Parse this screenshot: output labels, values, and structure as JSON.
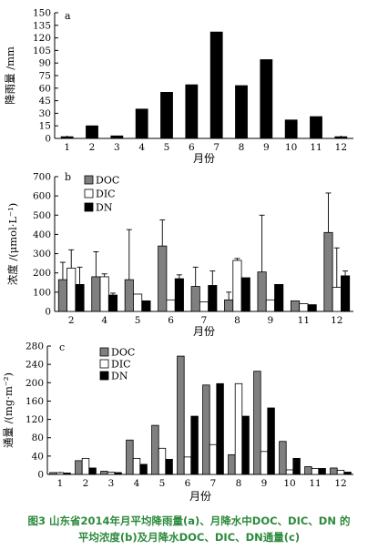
{
  "figure": {
    "caption_line1": "图3 山东省2014年月平均降雨量(a)、月降水中DOC、DIC、DN 的",
    "caption_line2": "平均浓度(b)及月降水DOC、DIC、DN通量(c)",
    "caption_color": "#2c8a3c"
  },
  "chart_data": [
    {
      "type": "bar",
      "panel_label": "a",
      "ylabel": "降雨量 /mm",
      "xlabel": "月份",
      "ylim": [
        0,
        150
      ],
      "yticks": [
        0,
        15,
        30,
        45,
        60,
        75,
        90,
        105,
        120,
        135,
        150
      ],
      "categories": [
        "1",
        "2",
        "3",
        "4",
        "5",
        "6",
        "7",
        "8",
        "9",
        "10",
        "11",
        "12"
      ],
      "series": [
        {
          "color": "#000000",
          "values": [
            2,
            15,
            3,
            35,
            55,
            64,
            127,
            63,
            94,
            22,
            26,
            2
          ]
        }
      ]
    },
    {
      "type": "bar",
      "panel_label": "b",
      "ylabel": "浓度 /(μmol·L⁻¹)",
      "xlabel": "月份",
      "ylim": [
        0,
        700
      ],
      "yticks": [
        0,
        100,
        200,
        300,
        400,
        500,
        600,
        700
      ],
      "categories": [
        "2",
        "4",
        "5",
        "6",
        "7",
        "8",
        "9",
        "11",
        "12"
      ],
      "series": [
        {
          "name": "DOC",
          "color": "#808080",
          "values": [
            165,
            180,
            165,
            340,
            130,
            60,
            205,
            55,
            410
          ],
          "errors": [
            90,
            130,
            260,
            135,
            100,
            40,
            295,
            0,
            205
          ]
        },
        {
          "name": "DIC",
          "color": "#ffffff",
          "values": [
            225,
            180,
            90,
            60,
            50,
            265,
            60,
            40,
            125
          ],
          "errors": [
            95,
            15,
            0,
            0,
            0,
            10,
            0,
            0,
            205
          ]
        },
        {
          "name": "DN",
          "color": "#000000",
          "values": [
            140,
            85,
            55,
            170,
            135,
            175,
            140,
            35,
            185
          ],
          "errors": [
            90,
            10,
            0,
            20,
            75,
            0,
            0,
            0,
            25
          ]
        }
      ]
    },
    {
      "type": "bar",
      "panel_label": "c",
      "ylabel": "通量 /(mg·m⁻²)",
      "xlabel": "月份",
      "ylim": [
        0,
        280
      ],
      "yticks": [
        0,
        40,
        80,
        120,
        160,
        200,
        240,
        280
      ],
      "categories": [
        "1",
        "2",
        "3",
        "4",
        "5",
        "6",
        "7",
        "8",
        "9",
        "10",
        "11",
        "12"
      ],
      "series": [
        {
          "name": "DOC",
          "color": "#808080",
          "values": [
            4,
            30,
            7,
            75,
            107,
            258,
            195,
            43,
            225,
            72,
            17,
            14
          ]
        },
        {
          "name": "DIC",
          "color": "#ffffff",
          "values": [
            4,
            35,
            5,
            35,
            57,
            38,
            65,
            198,
            50,
            10,
            13,
            9
          ]
        },
        {
          "name": "DN",
          "color": "#000000",
          "values": [
            3,
            14,
            4,
            22,
            33,
            127,
            198,
            127,
            145,
            35,
            13,
            5
          ]
        }
      ]
    }
  ]
}
